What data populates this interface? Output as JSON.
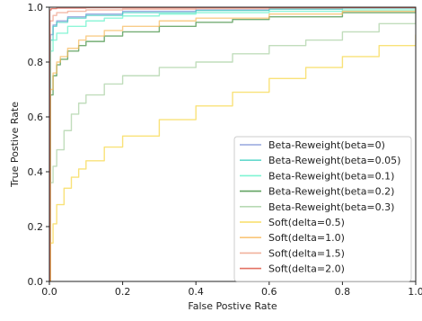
{
  "chart_data": {
    "type": "line",
    "title": "",
    "xlabel": "False Postive Rate",
    "ylabel": "True Postive Rate",
    "xlim": [
      0.0,
      1.0
    ],
    "ylim": [
      0.0,
      1.0
    ],
    "xticks": [
      "0.0",
      "0.2",
      "0.4",
      "0.6",
      "0.8",
      "1.0"
    ],
    "yticks": [
      "0.0",
      "0.2",
      "0.4",
      "0.6",
      "0.8",
      "1.0"
    ],
    "xtick_values": [
      0.0,
      0.2,
      0.4,
      0.6,
      0.8,
      1.0
    ],
    "ytick_values": [
      0.0,
      0.2,
      0.4,
      0.6,
      0.8,
      1.0
    ],
    "grid": false,
    "legend_position": "lower-right",
    "series": [
      {
        "name": "Beta-Reweight(beta=0)",
        "color": "#7b8fd6",
        "x": [
          0,
          0.003,
          0.01,
          0.02,
          0.05,
          0.1,
          0.2,
          0.4,
          0.6,
          0.8,
          1.0
        ],
        "y": [
          0,
          0.9,
          0.935,
          0.95,
          0.965,
          0.975,
          0.985,
          0.99,
          0.994,
          0.997,
          1.0
        ]
      },
      {
        "name": "Beta-Reweight(beta=0.05)",
        "color": "#3ecfc0",
        "x": [
          0,
          0.003,
          0.01,
          0.02,
          0.05,
          0.1,
          0.2,
          0.4,
          0.6,
          0.8,
          1.0
        ],
        "y": [
          0,
          0.88,
          0.93,
          0.945,
          0.96,
          0.97,
          0.98,
          0.988,
          0.993,
          0.997,
          1.0
        ]
      },
      {
        "name": "Beta-Reweight(beta=0.1)",
        "color": "#5ff2c8",
        "x": [
          0,
          0.003,
          0.01,
          0.02,
          0.05,
          0.1,
          0.15,
          0.2,
          0.3,
          0.4,
          0.6,
          0.8,
          1.0
        ],
        "y": [
          0,
          0.84,
          0.88,
          0.905,
          0.93,
          0.95,
          0.96,
          0.968,
          0.975,
          0.98,
          0.985,
          0.99,
          1.0
        ]
      },
      {
        "name": "Beta-Reweight(beta=0.2)",
        "color": "#3a8c3a",
        "x": [
          0,
          0.003,
          0.01,
          0.02,
          0.03,
          0.05,
          0.08,
          0.1,
          0.15,
          0.2,
          0.3,
          0.4,
          0.5,
          0.6,
          0.8,
          1.0
        ],
        "y": [
          0,
          0.68,
          0.75,
          0.79,
          0.81,
          0.84,
          0.86,
          0.875,
          0.895,
          0.91,
          0.93,
          0.945,
          0.955,
          0.965,
          0.98,
          1.0
        ]
      },
      {
        "name": "Beta-Reweight(beta=0.3)",
        "color": "#a6cfa0",
        "x": [
          0,
          0.003,
          0.01,
          0.02,
          0.04,
          0.06,
          0.08,
          0.1,
          0.15,
          0.2,
          0.3,
          0.4,
          0.5,
          0.6,
          0.7,
          0.8,
          0.9,
          1.0
        ],
        "y": [
          0,
          0.36,
          0.42,
          0.48,
          0.55,
          0.61,
          0.65,
          0.68,
          0.72,
          0.75,
          0.78,
          0.8,
          0.83,
          0.86,
          0.88,
          0.91,
          0.94,
          0.98
        ]
      },
      {
        "name": "Soft(delta=0.5)",
        "color": "#f7d640",
        "x": [
          0,
          0.003,
          0.01,
          0.02,
          0.04,
          0.06,
          0.08,
          0.1,
          0.15,
          0.2,
          0.3,
          0.4,
          0.5,
          0.6,
          0.7,
          0.8,
          0.9,
          1.0
        ],
        "y": [
          0,
          0.14,
          0.21,
          0.28,
          0.34,
          0.38,
          0.41,
          0.44,
          0.49,
          0.53,
          0.59,
          0.64,
          0.69,
          0.74,
          0.78,
          0.82,
          0.86,
          0.9
        ]
      },
      {
        "name": "Soft(delta=1.0)",
        "color": "#f7b858",
        "x": [
          0,
          0.003,
          0.01,
          0.02,
          0.03,
          0.05,
          0.08,
          0.1,
          0.15,
          0.2,
          0.3,
          0.4,
          0.6,
          0.8,
          1.0
        ],
        "y": [
          0,
          0.7,
          0.76,
          0.8,
          0.82,
          0.85,
          0.88,
          0.895,
          0.915,
          0.93,
          0.95,
          0.96,
          0.975,
          0.985,
          1.0
        ]
      },
      {
        "name": "Soft(delta=1.5)",
        "color": "#ee9d84",
        "x": [
          0,
          0.002,
          0.01,
          0.02,
          0.05,
          0.1,
          0.2,
          0.4,
          0.6,
          0.8,
          1.0
        ],
        "y": [
          0,
          0.95,
          0.97,
          0.98,
          0.985,
          0.99,
          0.993,
          0.995,
          0.997,
          0.998,
          1.0
        ]
      },
      {
        "name": "Soft(delta=2.0)",
        "color": "#dc4e3c",
        "x": [
          0,
          0.001,
          0.005,
          0.02,
          0.1,
          0.4,
          1.0
        ],
        "y": [
          0,
          0.99,
          0.995,
          0.997,
          0.998,
          0.999,
          1.0
        ]
      }
    ]
  }
}
